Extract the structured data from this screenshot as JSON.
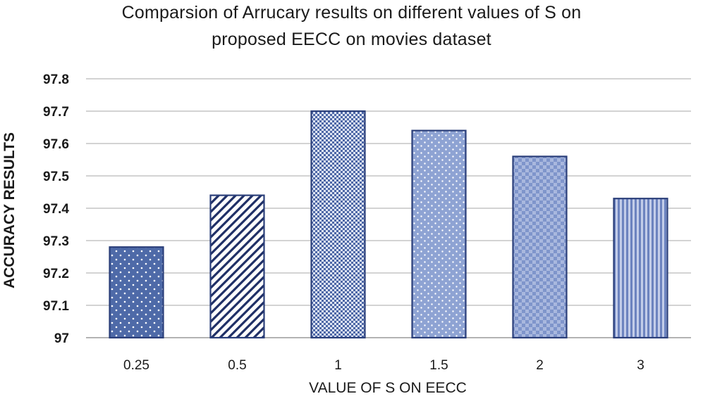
{
  "chart_data": {
    "type": "bar",
    "title_lines": [
      "Comparsion  of Arrucary  results  on  different  values  of S on",
      "proposed  EECC on movies  dataset"
    ],
    "xlabel": "VALUE OF S ON EECC",
    "ylabel": "ACCURACY RESULTS",
    "categories": [
      "0.25",
      "0.5",
      "1",
      "1.5",
      "2",
      "3"
    ],
    "values": [
      97.28,
      97.44,
      97.7,
      97.64,
      97.56,
      97.43
    ],
    "ylim": [
      97,
      97.8
    ],
    "yticks": [
      "97",
      "97.1",
      "97.2",
      "97.3",
      "97.4",
      "97.5",
      "97.6",
      "97.7",
      "97.8"
    ],
    "grid": true,
    "legend": "none",
    "bar_patterns": [
      "dots",
      "diagonal-stripes",
      "checker-fine",
      "dots-light",
      "checker",
      "vertical-stripes"
    ],
    "colors": {
      "bar_outline": "#2b3f7a",
      "bar_dark": "#4e6aa8",
      "bar_light": "#8ea3d3",
      "grid": "#b9b9b9",
      "axis": "#9a9a9a"
    }
  }
}
